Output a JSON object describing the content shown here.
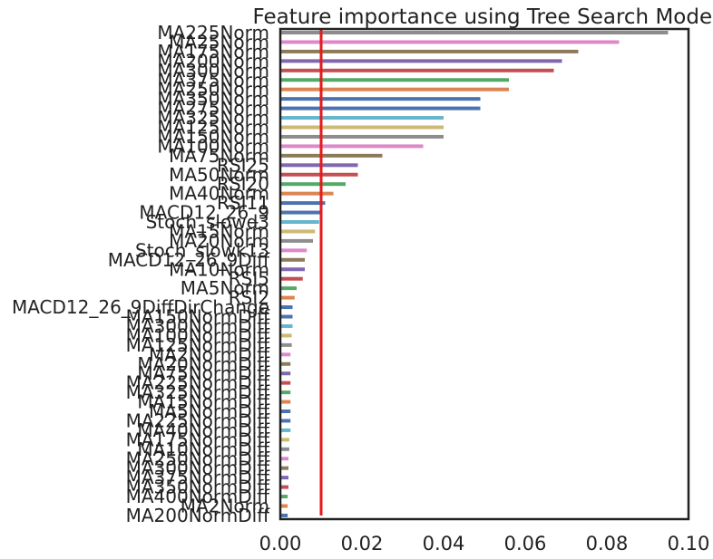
{
  "chart_data": {
    "type": "bar",
    "orientation": "horizontal",
    "title": "Feature importance using Tree Search Model",
    "xlabel": "",
    "ylabel": "",
    "xlim": [
      0.0,
      0.1
    ],
    "xticks": [
      "0.00",
      "0.02",
      "0.04",
      "0.06",
      "0.08",
      "0.10"
    ],
    "grid": false,
    "legend": "none",
    "threshold": 0.01,
    "threshold_color": "#e41a1c",
    "bar_colors": [
      "#8c8c8c",
      "#dd88c9",
      "#8c7a5a",
      "#7f68b0",
      "#c44e52",
      "#55a868",
      "#dd8452",
      "#4c72b0",
      "#4c72b0",
      "#64b5cd",
      "#ccb974",
      "#8c8c8c",
      "#dd88c9",
      "#8c7a5a",
      "#7f68b0",
      "#c44e52",
      "#55a868",
      "#dd8452",
      "#4c72b0",
      "#4c72b0",
      "#64b5cd",
      "#ccb974",
      "#8c8c8c",
      "#dd88c9",
      "#8c7a5a",
      "#7f68b0",
      "#c44e52",
      "#55a868",
      "#dd8452",
      "#4c72b0",
      "#4c72b0",
      "#64b5cd",
      "#ccb974",
      "#8c8c8c",
      "#dd88c9",
      "#8c7a5a",
      "#7f68b0",
      "#c44e52",
      "#55a868",
      "#dd8452",
      "#4c72b0",
      "#4c72b0",
      "#64b5cd",
      "#ccb974",
      "#8c8c8c",
      "#dd88c9",
      "#8c7a5a",
      "#7f68b0",
      "#c44e52",
      "#55a868",
      "#dd8452",
      "#4c72b0"
    ],
    "categories": [
      "MA225Norm",
      "MA25Norm",
      "MA175Norm",
      "MA200Norm",
      "MA300Norm",
      "MA375Norm",
      "MA250Norm",
      "MA350Norm",
      "MA275Norm",
      "MA325Norm",
      "MA125Norm",
      "MA150Norm",
      "MA100Norm",
      "MA75Norm",
      "RSI25",
      "MA50Norm",
      "RSI20",
      "MA40Norm",
      "RSI11",
      "MACD12_26_9",
      "Stoch_slowd3",
      "MA15Norm",
      "MA20Norm",
      "Stoch_slowk13",
      "MACD12_26_9Diff",
      "MA10Norm",
      "RSI5",
      "MA5Norm",
      "RSI2",
      "MACD12_26_9DiffDirChange",
      "MA150NormDiff",
      "MA300NormDiff",
      "MA100NormDiff",
      "MA125NormDiff",
      "MA2NormDiff",
      "MA20NormDiff",
      "MA75NormDiff",
      "MA225NormDiff",
      "MA325NormDiff",
      "MA15NormDiff",
      "MA5NormDiff",
      "MA225NormDiff",
      "MA40NormDiff",
      "MA175NormDiff",
      "MA10NormDiff",
      "MA250NormDiff",
      "MA300NormDiff",
      "MA375NormDiff",
      "MA350NormDiff",
      "MA400NormDiff",
      "MA2Norm",
      "MA200NormDiff"
    ],
    "values": [
      0.095,
      0.083,
      0.073,
      0.069,
      0.067,
      0.056,
      0.056,
      0.049,
      0.049,
      0.04,
      0.04,
      0.04,
      0.035,
      0.025,
      0.019,
      0.019,
      0.016,
      0.013,
      0.011,
      0.01,
      0.0095,
      0.0085,
      0.008,
      0.0065,
      0.006,
      0.006,
      0.0055,
      0.004,
      0.0035,
      0.003,
      0.003,
      0.003,
      0.0028,
      0.0028,
      0.0025,
      0.0025,
      0.0025,
      0.0025,
      0.0025,
      0.0025,
      0.0025,
      0.0025,
      0.0025,
      0.0022,
      0.0022,
      0.002,
      0.002,
      0.002,
      0.002,
      0.0018,
      0.0018,
      0.0018
    ]
  }
}
